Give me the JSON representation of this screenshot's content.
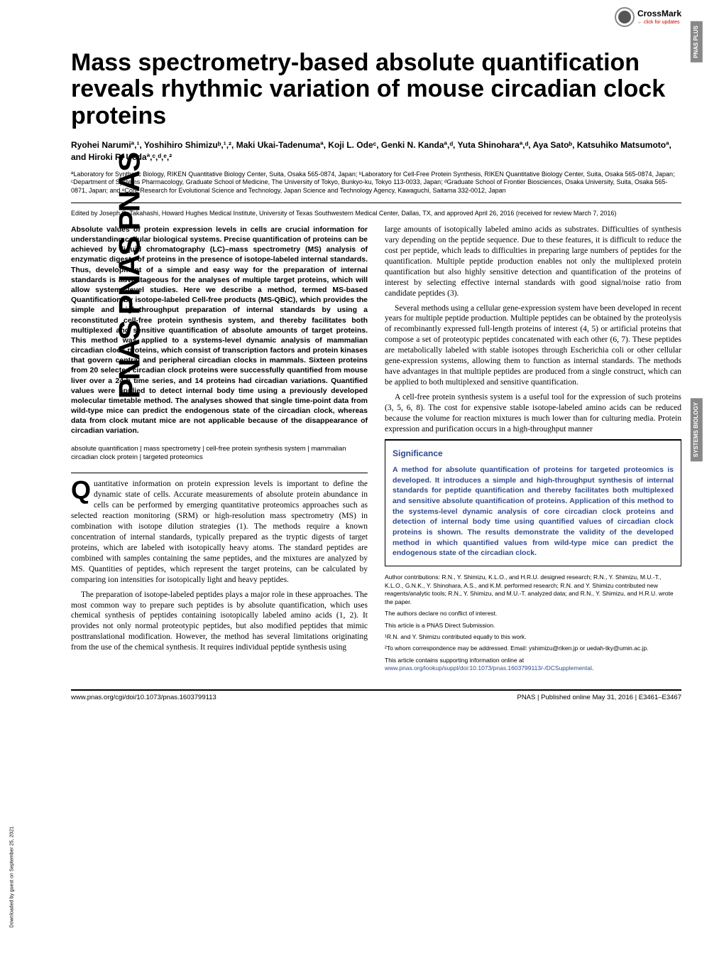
{
  "brand_vertical": "PNAS  PNAS  PNAS",
  "download_note": "Downloaded by guest on September 25, 2021",
  "crossmark": {
    "label": "CrossMark",
    "sub": "← click for updates"
  },
  "side_tabs": {
    "tab1": "PNAS PLUS",
    "tab2": "SYSTEMS BIOLOGY"
  },
  "title": "Mass spectrometry-based absolute quantification reveals rhythmic variation of mouse circadian clock proteins",
  "authors": "Ryohei Narumiª,¹, Yoshihiro Shimizuᵇ,¹,², Maki Ukai-Tadenumaª, Koji L. Odeᶜ, Genki N. Kandaª,ᵈ, Yuta Shinoharaª,ᵈ, Aya Satoᵇ, Katsuhiko Matsumotoª, and Hiroki R. Uedaª,ᶜ,ᵈ,ᵉ,²",
  "affiliations": "ªLaboratory for Synthetic Biology, RIKEN Quantitative Biology Center, Suita, Osaka 565-0874, Japan; ᵇLaboratory for Cell-Free Protein Synthesis, RIKEN Quantitative Biology Center, Suita, Osaka 565-0874, Japan; ᶜDepartment of Systems Pharmacology, Graduate School of Medicine, The University of Tokyo, Bunkyo-ku, Tokyo 113-0033, Japan; ᵈGraduate School of Frontier Biosciences, Osaka University, Suita, Osaka 565-0871, Japan; and ᵉCore Research for Evolutional Science and Technology, Japan Science and Technology Agency, Kawaguchi, Saitama 332-0012, Japan",
  "editor_note": "Edited by Joseph S. Takahashi, Howard Hughes Medical Institute, University of Texas Southwestern Medical Center, Dallas, TX, and approved April 26, 2016 (received for review March 7, 2016)",
  "abstract": "Absolute values of protein expression levels in cells are crucial information for understanding cellular biological systems. Precise quantification of proteins can be achieved by liquid chromatography (LC)–mass spectrometry (MS) analysis of enzymatic digests of proteins in the presence of isotope-labeled internal standards. Thus, development of a simple and easy way for the preparation of internal standards is advantageous for the analyses of multiple target proteins, which will allow systems-level studies. Here we describe a method, termed MS-based Quantification By isotope-labeled Cell-free products (MS-QBiC), which provides the simple and high-throughput preparation of internal standards by using a reconstituted cell-free protein synthesis system, and thereby facilitates both multiplexed and sensitive quantification of absolute amounts of target proteins. This method was applied to a systems-level dynamic analysis of mammalian circadian clock proteins, which consist of transcription factors and protein kinases that govern central and peripheral circadian clocks in mammals. Sixteen proteins from 20 selected circadian clock proteins were successfully quantified from mouse liver over a 24-h time series, and 14 proteins had circadian variations. Quantified values were applied to detect internal body time using a previously developed molecular timetable method. The analyses showed that single time-point data from wild-type mice can predict the endogenous state of the circadian clock, whereas data from clock mutant mice are not applicable because of the disappearance of circadian variation.",
  "keywords": "absolute quantification | mass spectrometry | cell-free protein synthesis system | mammalian circadian clock protein | targeted proteomics",
  "left_body": {
    "dropcap": "Q",
    "p1": "uantitative information on protein expression levels is important to define the dynamic state of cells. Accurate measurements of absolute protein abundance in cells can be performed by emerging quantitative proteomics approaches such as selected reaction monitoring (SRM) or high-resolution mass spectrometry (MS) in combination with isotope dilution strategies (1). The methods require a known concentration of internal standards, typically prepared as the tryptic digests of target proteins, which are labeled with isotopically heavy atoms. The standard peptides are combined with samples containing the same peptides, and the mixtures are analyzed by MS. Quantities of peptides, which represent the target proteins, can be calculated by comparing ion intensities for isotopically light and heavy peptides.",
    "p2": "The preparation of isotope-labeled peptides plays a major role in these approaches. The most common way to prepare such peptides is by absolute quantification, which uses chemical synthesis of peptides containing isotopically labeled amino acids (1, 2). It provides not only normal proteotypic peptides, but also modified peptides that mimic posttranslational modification. However, the method has several limitations originating from the use of the chemical synthesis. It requires individual peptide synthesis using"
  },
  "right_body": {
    "p1": "large amounts of isotopically labeled amino acids as substrates. Difficulties of synthesis vary depending on the peptide sequence. Due to these features, it is difficult to reduce the cost per peptide, which leads to difficulties in preparing large numbers of peptides for the quantification. Multiple peptide production enables not only the multiplexed protein quantification but also highly sensitive detection and quantification of the proteins of interest by selecting effective internal standards with good signal/noise ratio from candidate peptides (3).",
    "p2": "Several methods using a cellular gene-expression system have been developed in recent years for multiple peptide production. Multiple peptides can be obtained by the proteolysis of recombinantly expressed full-length proteins of interest (4, 5) or artificial proteins that compose a set of proteotypic peptides concatenated with each other (6, 7). These peptides are metabolically labeled with stable isotopes through Escherichia coli or other cellular gene-expression systems, allowing them to function as internal standards. The methods have advantages in that multiple peptides are produced from a single construct, which can be applied to both multiplexed and sensitive quantification.",
    "p3": "A cell-free protein synthesis system is a useful tool for the expression of such proteins (3, 5, 6, 8). The cost for expensive stable isotope-labeled amino acids can be reduced because the volume for reaction mixtures is much lower than for culturing media. Protein expression and purification occurs in a high-throughput manner"
  },
  "significance": {
    "title": "Significance",
    "text": "A method for absolute quantification of proteins for targeted proteomics is developed. It introduces a simple and high-throughput synthesis of internal standards for peptide quantification and thereby facilitates both multiplexed and sensitive absolute quantification of proteins. Application of this method to the systems-level dynamic analysis of core circadian clock proteins and detection of internal body time using quantified values of circadian clock proteins is shown. The results demonstrate the validity of the developed method in which quantified values from wild-type mice can predict the endogenous state of the circadian clock."
  },
  "contributions": {
    "author_contrib": "Author contributions: R.N., Y. Shimizu, K.L.O., and H.R.U. designed research; R.N., Y. Shimizu, M.U.-T., K.L.O., G.N.K., Y. Shinohara, A.S., and K.M. performed research; R.N. and Y. Shimizu contributed new reagents/analytic tools; R.N., Y. Shimizu, and M.U.-T. analyzed data; and R.N., Y. Shimizu, and H.R.U. wrote the paper.",
    "conflict": "The authors declare no conflict of interest.",
    "direct": "This article is a PNAS Direct Submission.",
    "equal": "¹R.N. and Y. Shimizu contributed equally to this work.",
    "correspond": "²To whom correspondence may be addressed. Email: yshimizu@riken.jp or uedah-tky@umin.ac.jp.",
    "supp_prefix": "This article contains supporting information online at ",
    "supp_link": "www.pnas.org/lookup/suppl/doi:10.1073/pnas.1603799113/-/DCSupplemental",
    "supp_suffix": "."
  },
  "footer": {
    "doi": "www.pnas.org/cgi/doi/10.1073/pnas.1603799113",
    "right": "PNAS  |  Published online May 31, 2016  |  E3461–E3467"
  }
}
